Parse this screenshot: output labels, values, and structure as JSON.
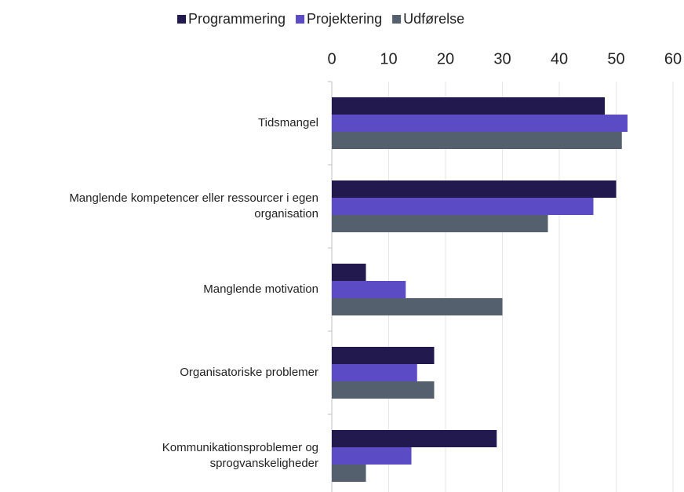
{
  "chart_data": {
    "type": "bar",
    "orientation": "horizontal",
    "categories": [
      "Tidsmangel",
      "Manglende kompetencer eller ressourcer i egen organisation",
      "Manglende motivation",
      "Organisatoriske problemer",
      "Kommunikationsproblemer og sprogvanskeligheder"
    ],
    "series": [
      {
        "name": "Programmering",
        "color": "#221a4e",
        "values": [
          48,
          50,
          6,
          18,
          29
        ]
      },
      {
        "name": "Projektering",
        "color": "#5b4bc4",
        "values": [
          52,
          46,
          13,
          15,
          14
        ]
      },
      {
        "name": "Udførelse",
        "color": "#55606e",
        "values": [
          51,
          38,
          30,
          18,
          6
        ]
      }
    ],
    "xlim": [
      0,
      60
    ],
    "xticks": [
      0,
      10,
      20,
      30,
      40,
      50,
      60
    ],
    "grid": true,
    "legend": "top"
  }
}
